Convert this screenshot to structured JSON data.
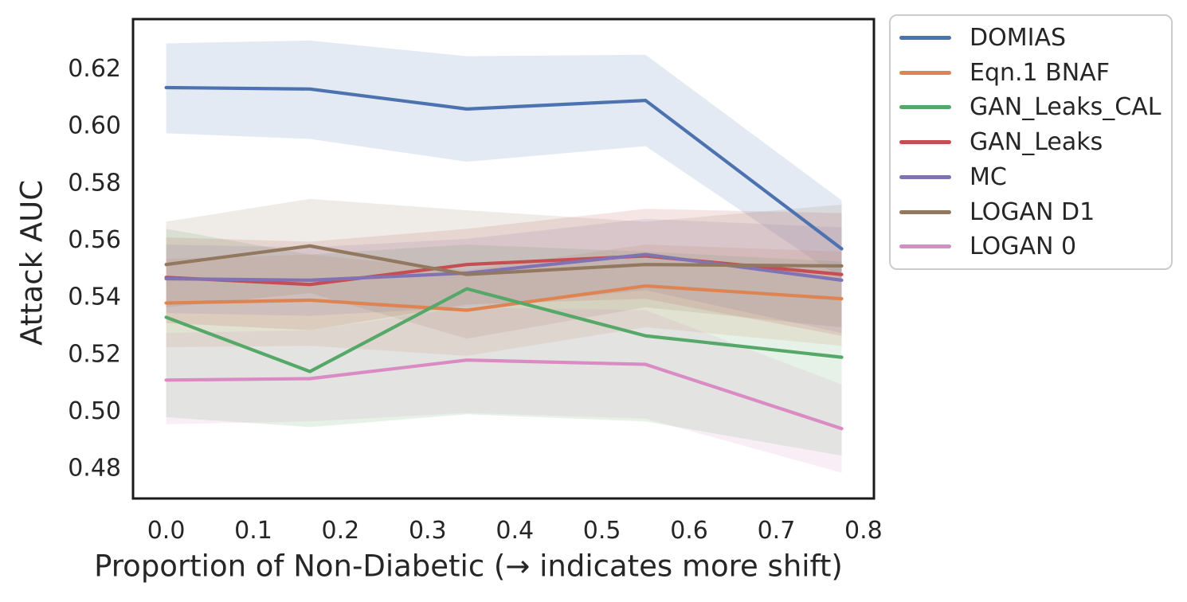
{
  "chart_data": {
    "type": "line",
    "title": "",
    "xlabel": "Proportion of Non-Diabetic (→ indicates more shift)",
    "ylabel": "Attack AUC",
    "grid": false,
    "legend_position": "outside-right",
    "band_alpha": 0.15,
    "xlim": [
      -0.038,
      0.812
    ],
    "ylim": [
      0.469,
      0.637
    ],
    "x_ticks": {
      "values": [
        0.0,
        0.1,
        0.2,
        0.3,
        0.4,
        0.5,
        0.6,
        0.7,
        0.8
      ],
      "labels": [
        "0.0",
        "0.1",
        "0.2",
        "0.3",
        "0.4",
        "0.5",
        "0.6",
        "0.7",
        "0.8"
      ]
    },
    "y_ticks": {
      "values": [
        0.62,
        0.6,
        0.58,
        0.56,
        0.54,
        0.52,
        0.5,
        0.48
      ],
      "labels": [
        "0.62",
        "0.60",
        "0.58",
        "0.56",
        "0.54",
        "0.52",
        "0.50",
        "0.48"
      ]
    },
    "x": [
      0.0,
      0.165,
      0.345,
      0.55,
      0.775
    ],
    "series": [
      {
        "name": "DOMIAS",
        "color": "#4C72B0",
        "values": [
          0.613,
          0.6125,
          0.6055,
          0.6085,
          0.5565
        ],
        "ci_upper": [
          0.6285,
          0.6295,
          0.624,
          0.6245,
          0.5735
        ],
        "ci_lower": [
          0.597,
          0.595,
          0.587,
          0.5925,
          0.546
        ]
      },
      {
        "name": "Eqn.1 BNAF",
        "color": "#DD8452",
        "values": [
          0.5375,
          0.5385,
          0.535,
          0.5435,
          0.539
        ],
        "ci_upper": [
          0.553,
          0.5545,
          0.549,
          0.558,
          0.5555
        ],
        "ci_lower": [
          0.522,
          0.5225,
          0.519,
          0.529,
          0.5225
        ]
      },
      {
        "name": "GAN_Leaks_CAL",
        "color": "#55A868",
        "values": [
          0.5325,
          0.5135,
          0.5425,
          0.526,
          0.5185
        ],
        "ci_upper": [
          0.5635,
          0.5545,
          0.558,
          0.5555,
          0.552
        ],
        "ci_lower": [
          0.4975,
          0.494,
          0.4985,
          0.496,
          0.484
        ]
      },
      {
        "name": "GAN_Leaks",
        "color": "#C44E52",
        "values": [
          0.5465,
          0.544,
          0.551,
          0.554,
          0.5475
        ],
        "ci_upper": [
          0.5605,
          0.559,
          0.5635,
          0.5705,
          0.569
        ],
        "ci_lower": [
          0.5305,
          0.528,
          0.537,
          0.539,
          0.526
        ]
      },
      {
        "name": "MC",
        "color": "#8172B3",
        "values": [
          0.546,
          0.5455,
          0.548,
          0.5545,
          0.5455
        ],
        "ci_upper": [
          0.558,
          0.557,
          0.56,
          0.567,
          0.564
        ],
        "ci_lower": [
          0.534,
          0.533,
          0.536,
          0.542,
          0.527
        ]
      },
      {
        "name": "LOGAN D1",
        "color": "#937860",
        "values": [
          0.551,
          0.5575,
          0.5475,
          0.551,
          0.5505
        ],
        "ci_upper": [
          0.566,
          0.574,
          0.57,
          0.566,
          0.572
        ],
        "ci_lower": [
          0.536,
          0.541,
          0.525,
          0.536,
          0.529
        ]
      },
      {
        "name": "LOGAN 0",
        "color": "#DA8BC3",
        "values": [
          0.5105,
          0.511,
          0.5175,
          0.516,
          0.4935
        ],
        "ci_upper": [
          0.527,
          0.528,
          0.536,
          0.535,
          0.509
        ],
        "ci_lower": [
          0.495,
          0.496,
          0.499,
          0.497,
          0.478
        ]
      }
    ]
  }
}
